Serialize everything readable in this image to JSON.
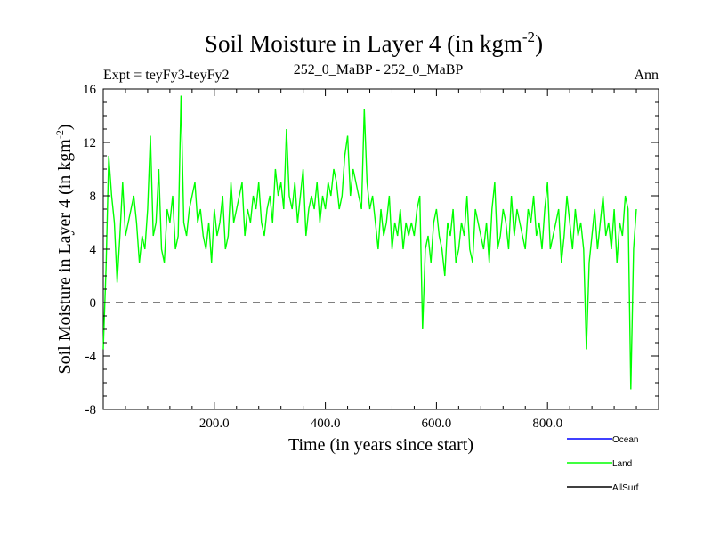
{
  "chart_data": {
    "type": "line",
    "title": "Soil Moisture in Layer 4 (in kgm",
    "title_sup": "-2",
    "title_close": ")",
    "subtitle_left": "Expt = teyFy3-teyFy2",
    "subtitle_center": "252_0_MaBP - 252_0_MaBP",
    "subtitle_right": "Ann",
    "xlabel": "Time (in years since start)",
    "ylabel": "Soil Moisture in Layer 4 (in kgm",
    "ylabel_sup": "-2",
    "ylabel_close": ")",
    "xlim": [
      0,
      1000
    ],
    "ylim": [
      -8,
      16
    ],
    "x_ticks": [
      200,
      400,
      600,
      800
    ],
    "x_tick_labels": [
      "200.0",
      "400.0",
      "600.0",
      "800.0"
    ],
    "y_ticks": [
      -8,
      -4,
      0,
      4,
      8,
      12,
      16
    ],
    "y_tick_labels": [
      "-8",
      "-4",
      "0",
      "4",
      "8",
      "12",
      "16"
    ],
    "zero_line": true,
    "series": [
      {
        "name": "Land",
        "color": "#00ff00",
        "x_start": 0,
        "x_step": 5,
        "values": [
          -3.5,
          2.5,
          11,
          8,
          6,
          1.5,
          5,
          9,
          5,
          6,
          7,
          8,
          6,
          3,
          5,
          4,
          7,
          12.5,
          5,
          6,
          10,
          4,
          3,
          7,
          6,
          8,
          4,
          5,
          15.5,
          6,
          5,
          7,
          8,
          9,
          6,
          7,
          5,
          4,
          6,
          3,
          7,
          5,
          6,
          8,
          4,
          5,
          9,
          6,
          7,
          8,
          9,
          5,
          7,
          6,
          8,
          7,
          9,
          6,
          5,
          7,
          8,
          6,
          10,
          8,
          9,
          7,
          13,
          8,
          7,
          9,
          6,
          8,
          10,
          5,
          7,
          8,
          7,
          9,
          6,
          8,
          7,
          9,
          8,
          10,
          9,
          7,
          8,
          11,
          12.5,
          8,
          10,
          9,
          8,
          7,
          14.5,
          9,
          7,
          8,
          6,
          4,
          7,
          5,
          6,
          8,
          4,
          6,
          5,
          7,
          4,
          6,
          5,
          6,
          5,
          7,
          8,
          -2,
          4,
          5,
          3,
          6,
          7,
          5,
          4,
          2,
          6,
          5,
          7,
          3,
          4,
          6,
          5,
          8,
          4,
          3,
          7,
          6,
          5,
          4,
          6,
          3,
          7,
          9,
          4,
          5,
          7,
          6,
          4,
          8,
          5,
          7,
          6,
          5,
          4,
          7,
          6,
          8,
          5,
          6,
          4,
          7,
          9,
          4,
          5,
          6,
          7,
          3,
          5,
          8,
          6,
          4,
          7,
          5,
          6,
          4,
          -3.5,
          3,
          5,
          7,
          4,
          6,
          8,
          5,
          6,
          4,
          7,
          3,
          6,
          5,
          8,
          7,
          -6.5,
          4,
          7
        ]
      }
    ],
    "legend": [
      {
        "label": "Ocean",
        "color": "#0000ff"
      },
      {
        "label": "Land",
        "color": "#00ff00"
      },
      {
        "label": "AllSurf",
        "color": "#000000"
      }
    ]
  }
}
